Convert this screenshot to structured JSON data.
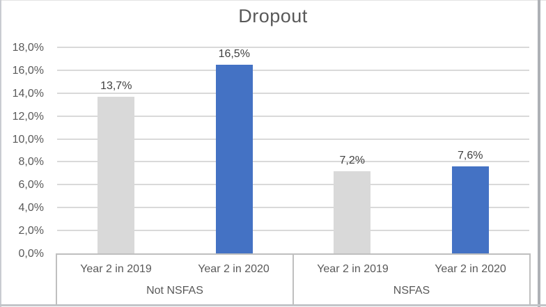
{
  "chart_data": {
    "type": "bar",
    "title": "Dropout",
    "legend": "none",
    "gridlines": true,
    "y_axis": {
      "min": 0,
      "max": 18,
      "step": 2,
      "tick_values": [
        0,
        2,
        4,
        6,
        8,
        10,
        12,
        14,
        16,
        18
      ],
      "tick_labels": [
        "0,0%",
        "2,0%",
        "4,0%",
        "6,0%",
        "8,0%",
        "10,0%",
        "12,0%",
        "14,0%",
        "16,0%",
        "18,0%"
      ]
    },
    "groups": [
      {
        "label": "Not NSFAS",
        "bars": [
          {
            "category": "Year 2 in 2019",
            "value": 13.7,
            "data_label": "13,7%",
            "color_key": "gray"
          },
          {
            "category": "Year 2 in 2020",
            "value": 16.5,
            "data_label": "16,5%",
            "color_key": "blue"
          }
        ]
      },
      {
        "label": "NSFAS",
        "bars": [
          {
            "category": "Year 2 in 2019",
            "value": 7.2,
            "data_label": "7,2%",
            "color_key": "gray"
          },
          {
            "category": "Year 2 in 2020",
            "value": 7.6,
            "data_label": "7,6%",
            "color_key": "blue"
          }
        ]
      }
    ],
    "colors": {
      "gray": "#D9D9D9",
      "blue": "#4472C4",
      "gridline": "#D9D9D9",
      "axis_line": "#BFBFBF",
      "title_text": "#595959",
      "axis_text": "#595959",
      "data_label_text": "#404040"
    }
  }
}
